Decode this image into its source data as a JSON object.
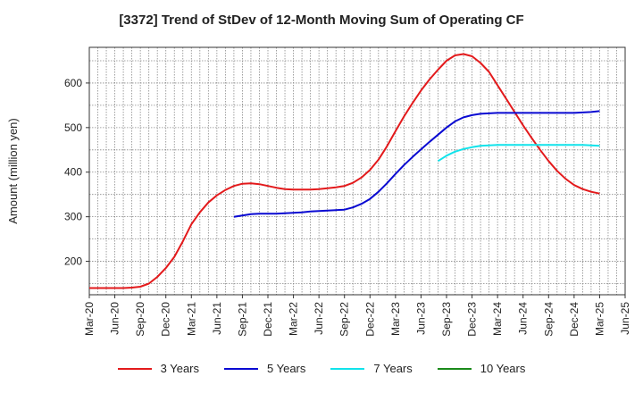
{
  "title": "[3372]  Trend of StDev of 12-Month Moving Sum of Operating CF",
  "chart_data": {
    "type": "line",
    "title": "[3372]  Trend of StDev of 12-Month Moving Sum of Operating CF",
    "xlabel": "",
    "ylabel": "Amount (million yen)",
    "x_ticks": [
      "Mar-20",
      "Jun-20",
      "Sep-20",
      "Dec-20",
      "Mar-21",
      "Jun-21",
      "Sep-21",
      "Dec-21",
      "Mar-22",
      "Jun-22",
      "Sep-22",
      "Dec-22",
      "Mar-23",
      "Jun-23",
      "Sep-23",
      "Dec-23",
      "Mar-24",
      "Jun-24",
      "Sep-24",
      "Dec-24",
      "Mar-25",
      "Jun-25"
    ],
    "y_ticks": [
      200,
      300,
      400,
      500,
      600
    ],
    "ylim": [
      125,
      680
    ],
    "grid": true,
    "legend": "bottom",
    "series": [
      {
        "name": "3 Years",
        "color": "#e31a1c",
        "points": [
          [
            "Mar-20",
            140
          ],
          [
            "Apr-20",
            140
          ],
          [
            "May-20",
            140
          ],
          [
            "Jun-20",
            140
          ],
          [
            "Jul-20",
            140
          ],
          [
            "Aug-20",
            141
          ],
          [
            "Sep-20",
            143
          ],
          [
            "Oct-20",
            150
          ],
          [
            "Nov-20",
            165
          ],
          [
            "Dec-20",
            185
          ],
          [
            "Jan-21",
            210
          ],
          [
            "Feb-21",
            245
          ],
          [
            "Mar-21",
            283
          ],
          [
            "Apr-21",
            310
          ],
          [
            "May-21",
            332
          ],
          [
            "Jun-21",
            348
          ],
          [
            "Jul-21",
            360
          ],
          [
            "Aug-21",
            369
          ],
          [
            "Sep-21",
            374
          ],
          [
            "Oct-21",
            375
          ],
          [
            "Nov-21",
            373
          ],
          [
            "Dec-21",
            369
          ],
          [
            "Jan-22",
            365
          ],
          [
            "Feb-22",
            362
          ],
          [
            "Mar-22",
            361
          ],
          [
            "Apr-22",
            361
          ],
          [
            "May-22",
            361
          ],
          [
            "Jun-22",
            362
          ],
          [
            "Jul-22",
            364
          ],
          [
            "Aug-22",
            366
          ],
          [
            "Sep-22",
            369
          ],
          [
            "Oct-22",
            376
          ],
          [
            "Nov-22",
            388
          ],
          [
            "Dec-22",
            405
          ],
          [
            "Jan-23",
            428
          ],
          [
            "Feb-23",
            458
          ],
          [
            "Mar-23",
            492
          ],
          [
            "Apr-23",
            525
          ],
          [
            "May-23",
            555
          ],
          [
            "Jun-23",
            583
          ],
          [
            "Jul-23",
            608
          ],
          [
            "Aug-23",
            630
          ],
          [
            "Sep-23",
            650
          ],
          [
            "Oct-23",
            662
          ],
          [
            "Nov-23",
            665
          ],
          [
            "Dec-23",
            660
          ],
          [
            "Jan-24",
            645
          ],
          [
            "Feb-24",
            625
          ],
          [
            "Mar-24",
            595
          ],
          [
            "Apr-24",
            565
          ],
          [
            "May-24",
            535
          ],
          [
            "Jun-24",
            505
          ],
          [
            "Jul-24",
            477
          ],
          [
            "Aug-24",
            450
          ],
          [
            "Sep-24",
            425
          ],
          [
            "Oct-24",
            403
          ],
          [
            "Nov-24",
            385
          ],
          [
            "Dec-24",
            371
          ],
          [
            "Jan-25",
            362
          ],
          [
            "Feb-25",
            356
          ],
          [
            "Mar-25",
            352
          ]
        ]
      },
      {
        "name": "5 Years",
        "color": "#0a0ad2",
        "points": [
          [
            "Aug-21",
            300
          ],
          [
            "Sep-21",
            303
          ],
          [
            "Oct-21",
            306
          ],
          [
            "Nov-21",
            307
          ],
          [
            "Dec-21",
            307
          ],
          [
            "Jan-22",
            307
          ],
          [
            "Feb-22",
            308
          ],
          [
            "Mar-22",
            309
          ],
          [
            "Apr-22",
            310
          ],
          [
            "May-22",
            312
          ],
          [
            "Jun-22",
            313
          ],
          [
            "Jul-22",
            314
          ],
          [
            "Aug-22",
            315
          ],
          [
            "Sep-22",
            316
          ],
          [
            "Oct-22",
            321
          ],
          [
            "Nov-22",
            329
          ],
          [
            "Dec-22",
            340
          ],
          [
            "Jan-23",
            356
          ],
          [
            "Feb-23",
            375
          ],
          [
            "Mar-23",
            396
          ],
          [
            "Apr-23",
            416
          ],
          [
            "May-23",
            434
          ],
          [
            "Jun-23",
            451
          ],
          [
            "Jul-23",
            468
          ],
          [
            "Aug-23",
            484
          ],
          [
            "Sep-23",
            500
          ],
          [
            "Oct-23",
            514
          ],
          [
            "Nov-23",
            523
          ],
          [
            "Dec-23",
            528
          ],
          [
            "Jan-24",
            531
          ],
          [
            "Feb-24",
            532
          ],
          [
            "Mar-24",
            533
          ],
          [
            "Apr-24",
            533
          ],
          [
            "May-24",
            533
          ],
          [
            "Jun-24",
            533
          ],
          [
            "Jul-24",
            533
          ],
          [
            "Aug-24",
            533
          ],
          [
            "Sep-24",
            533
          ],
          [
            "Oct-24",
            533
          ],
          [
            "Nov-24",
            533
          ],
          [
            "Dec-24",
            533
          ],
          [
            "Jan-25",
            534
          ],
          [
            "Feb-25",
            535
          ],
          [
            "Mar-25",
            537
          ]
        ]
      },
      {
        "name": "7 Years",
        "color": "#11e3eb",
        "points": [
          [
            "Aug-23",
            425
          ],
          [
            "Sep-23",
            437
          ],
          [
            "Oct-23",
            446
          ],
          [
            "Nov-23",
            452
          ],
          [
            "Dec-23",
            456
          ],
          [
            "Jan-24",
            459
          ],
          [
            "Feb-24",
            460
          ],
          [
            "Mar-24",
            461
          ],
          [
            "Apr-24",
            461
          ],
          [
            "May-24",
            461
          ],
          [
            "Jun-24",
            461
          ],
          [
            "Jul-24",
            461
          ],
          [
            "Aug-24",
            461
          ],
          [
            "Sep-24",
            461
          ],
          [
            "Oct-24",
            461
          ],
          [
            "Nov-24",
            461
          ],
          [
            "Dec-24",
            461
          ],
          [
            "Jan-25",
            461
          ],
          [
            "Feb-25",
            460
          ],
          [
            "Mar-25",
            459
          ]
        ]
      },
      {
        "name": "10 Years",
        "color": "#1a8a1a",
        "points": []
      }
    ]
  }
}
